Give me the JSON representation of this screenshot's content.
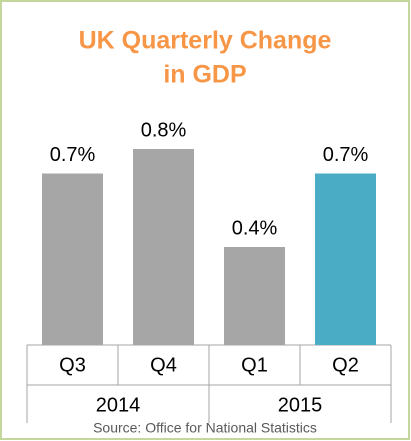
{
  "chart_data": {
    "type": "bar",
    "title": [
      "UK Quarterly Change",
      "in GDP"
    ],
    "categories": [
      "Q3",
      "Q4",
      "Q1",
      "Q2"
    ],
    "values": [
      0.7,
      0.8,
      0.4,
      0.7
    ],
    "value_labels": [
      "0.7%",
      "0.8%",
      "0.4%",
      "0.7%"
    ],
    "colors": [
      "#a6a6a6",
      "#a6a6a6",
      "#a6a6a6",
      "#4bacc6"
    ],
    "groups": [
      {
        "label": "2014",
        "categories": [
          0,
          1
        ]
      },
      {
        "label": "2015",
        "categories": [
          2,
          3
        ]
      }
    ],
    "source": "Source: Office for National Statistics"
  }
}
